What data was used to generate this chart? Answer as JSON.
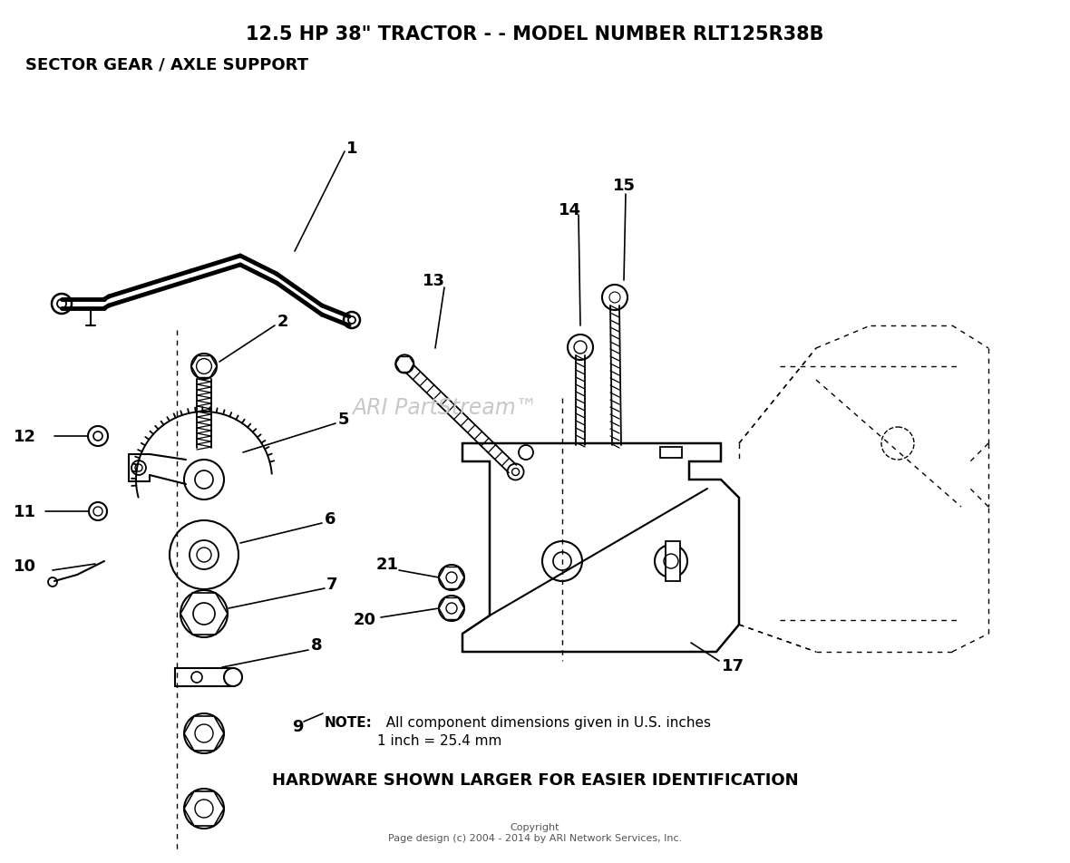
{
  "title_line1": "12.5 HP 38\" TRACTOR - - MODEL NUMBER RLT125R38B",
  "title_line2": "SECTOR GEAR / AXLE SUPPORT",
  "watermark": "ARI PartStream™",
  "note_bold": "NOTE:",
  "note_text": "  All component dimensions given in U.S. inches",
  "note_line2": "1 inch = 25.4 mm",
  "hardware_note": "HARDWARE SHOWN LARGER FOR EASIER IDENTIFICATION",
  "copyright": "Copyright\nPage design (c) 2004 - 2014 by ARI Network Services, Inc.",
  "bg_color": "#ffffff"
}
